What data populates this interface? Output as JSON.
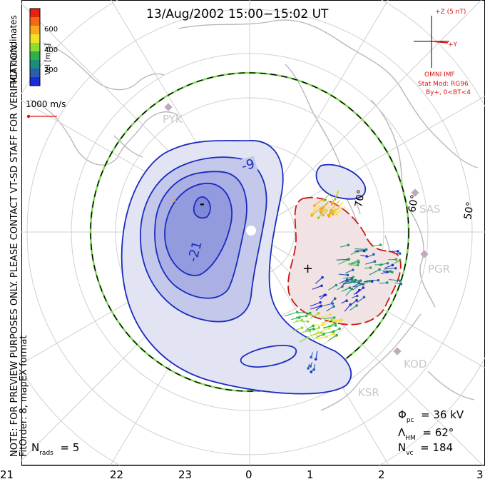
{
  "title": "13/Aug/2002  15:00−15:02 UT",
  "side_note": "NOTE: FOR PREVIEW PURPOSES ONLY. PLEASE CONTACT VT-SD STAFF FOR VERIFICATION.",
  "fit_order": "FitOrder: 8, mapEX format",
  "coords_label": "MLT coordinates",
  "velocity_scale": {
    "label": "Vel [m/s]",
    "ticks": [
      "600",
      "400",
      "200"
    ],
    "colors": [
      "#e8200f",
      "#f06a12",
      "#f5a820",
      "#f0e22a",
      "#8ddc2f",
      "#2fb04a",
      "#1e8c7a",
      "#2a5fae",
      "#1c2cd8"
    ]
  },
  "vector_scale": "1000 m/s",
  "imf": {
    "z_label": "+Z (5 nT)",
    "y_label": "+Y",
    "source": "OMNI IMF",
    "model": "Stat Mod: RG96",
    "condition": "By+, 0<BT<4"
  },
  "stations": [
    "PYK",
    "SAS",
    "PGR",
    "KOD",
    "KSR"
  ],
  "latitude_labels": [
    "70°",
    "60°",
    "50°"
  ],
  "contour_labels": [
    "-9",
    "-21",
    "-",
    "+"
  ],
  "mlt_ticks": [
    "21",
    "22",
    "23",
    "0",
    "1",
    "2",
    "3"
  ],
  "stats": {
    "phi_symbol": "Φ",
    "phi_sub": "pc",
    "phi_value": "= 36 kV",
    "lambda_symbol": "Λ",
    "lambda_sub": "HM",
    "lambda_value": "= 62°",
    "nvc_symbol": "N",
    "nvc_sub": "vc",
    "nvc_value": "= 184",
    "nrads_symbol": "N",
    "nrads_sub": "rads",
    "nrads_value": "= 5"
  }
}
